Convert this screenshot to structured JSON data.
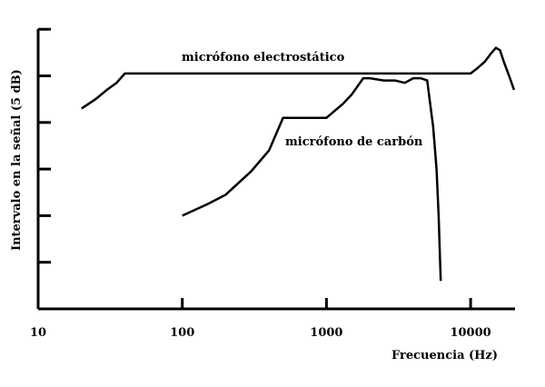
{
  "chart_data": {
    "type": "line",
    "xscale": "log",
    "xlim": [
      10,
      20000
    ],
    "ylim": [
      0,
      6
    ],
    "xlabel": "Frecuencia (Hz)",
    "ylabel": "Intervalo en la señal (5 dB)",
    "x_ticks": [
      10,
      100,
      1000,
      10000
    ],
    "x_tick_labels": [
      "10",
      "100",
      "1000",
      "10000"
    ],
    "y_ticks": [
      1,
      2,
      3,
      4,
      5,
      6
    ],
    "grid": false,
    "series": [
      {
        "name": "micrófono electrostático",
        "points": [
          [
            20,
            4.3
          ],
          [
            25,
            4.5
          ],
          [
            30,
            4.7
          ],
          [
            35,
            4.85
          ],
          [
            40,
            5.05
          ],
          [
            100,
            5.05
          ],
          [
            1000,
            5.05
          ],
          [
            10000,
            5.05
          ],
          [
            11000,
            5.15
          ],
          [
            12500,
            5.3
          ],
          [
            14000,
            5.5
          ],
          [
            15000,
            5.6
          ],
          [
            16000,
            5.55
          ],
          [
            17000,
            5.3
          ],
          [
            18500,
            5.0
          ],
          [
            20000,
            4.7
          ]
        ]
      },
      {
        "name": "micrófono de carbón",
        "points": [
          [
            100,
            2.0
          ],
          [
            150,
            2.25
          ],
          [
            200,
            2.45
          ],
          [
            300,
            2.95
          ],
          [
            400,
            3.4
          ],
          [
            500,
            4.1
          ],
          [
            600,
            4.1
          ],
          [
            800,
            4.1
          ],
          [
            1000,
            4.1
          ],
          [
            1300,
            4.4
          ],
          [
            1500,
            4.6
          ],
          [
            1800,
            4.95
          ],
          [
            2000,
            4.95
          ],
          [
            2500,
            4.9
          ],
          [
            3000,
            4.9
          ],
          [
            3500,
            4.85
          ],
          [
            4000,
            4.95
          ],
          [
            4500,
            4.95
          ],
          [
            5000,
            4.9
          ],
          [
            5500,
            3.9
          ],
          [
            5800,
            3.0
          ],
          [
            6000,
            2.0
          ],
          [
            6200,
            0.6
          ]
        ]
      }
    ]
  }
}
